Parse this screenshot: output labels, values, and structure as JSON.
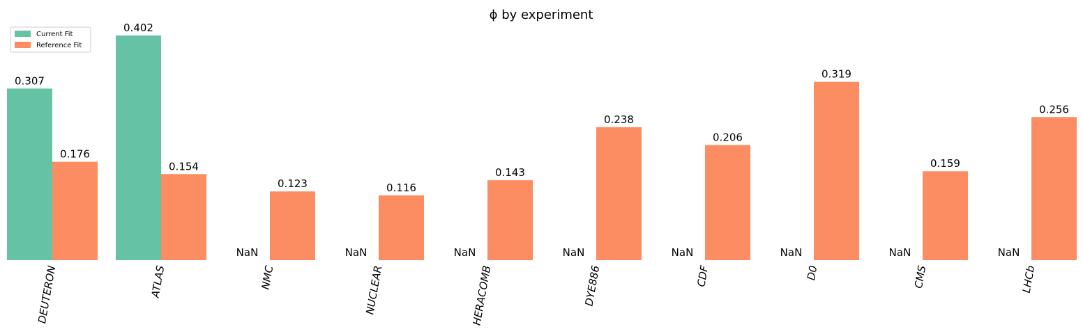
{
  "chart_data": {
    "type": "bar",
    "title": "ϕ by experiment",
    "xlabel": "",
    "ylabel": "",
    "categories": [
      "DEUTERON",
      "ATLAS",
      "NMC",
      "NUCLEAR",
      "HERACOMB",
      "DYE886",
      "CDF",
      "D0",
      "CMS",
      "LHCb"
    ],
    "series": [
      {
        "name": "Current Fit",
        "color": "#66c2a5",
        "values": [
          0.307,
          0.402,
          null,
          null,
          null,
          null,
          null,
          null,
          null,
          null
        ],
        "labels": [
          "0.307",
          "0.402",
          "NaN",
          "NaN",
          "NaN",
          "NaN",
          "NaN",
          "NaN",
          "NaN",
          "NaN"
        ]
      },
      {
        "name": "Reference Fit",
        "color": "#fc8d62",
        "values": [
          0.176,
          0.154,
          0.123,
          0.116,
          0.143,
          0.238,
          0.206,
          0.319,
          0.159,
          0.256
        ],
        "labels": [
          "0.176",
          "0.154",
          "0.123",
          "0.116",
          "0.143",
          "0.238",
          "0.206",
          "0.319",
          "0.159",
          "0.256"
        ]
      }
    ],
    "ylim": [
      0,
      0.402
    ],
    "grid": false,
    "legend": "top-left"
  }
}
